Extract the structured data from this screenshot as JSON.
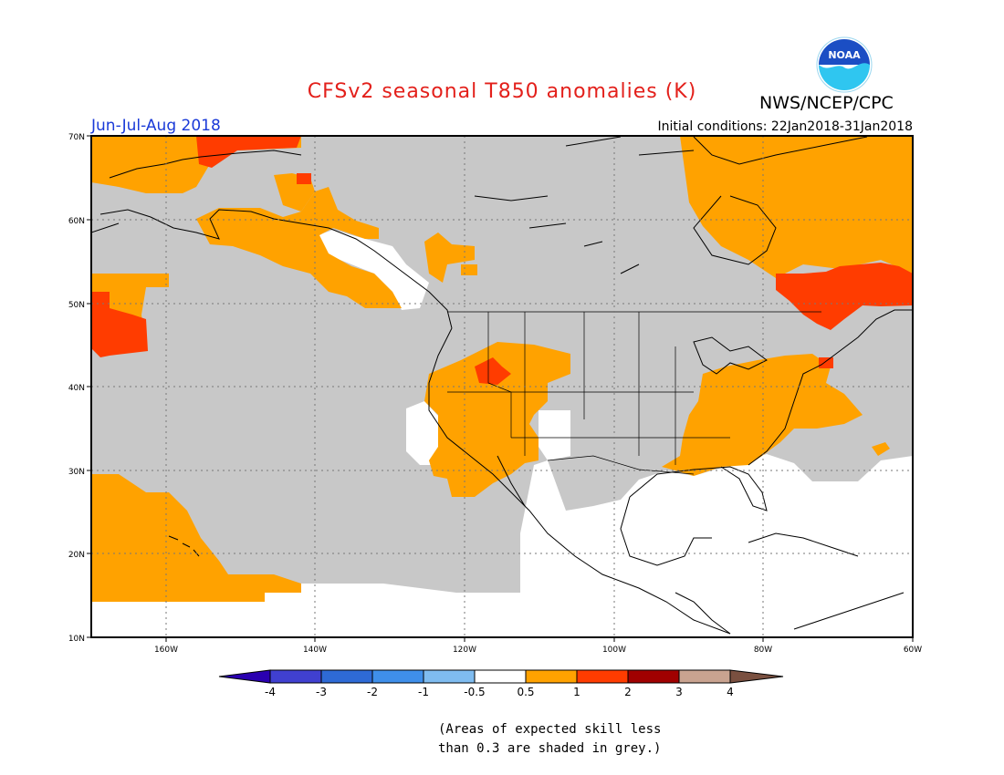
{
  "title": "CFSv2 seasonal T850 anomalies (K)",
  "agency": "NWS/NCEP/CPC",
  "logo_text": "NOAA",
  "period": "Jun-Jul-Aug 2018",
  "initial_conditions": "Initial conditions: 22Jan2018-31Jan2018",
  "map": {
    "lat_labels": [
      "70N",
      "60N",
      "50N",
      "40N",
      "30N",
      "20N",
      "10N"
    ],
    "lon_labels": [
      "160W",
      "140W",
      "120W",
      "100W",
      "80W",
      "60W"
    ],
    "extent": {
      "lon_min": -170,
      "lon_max": -60,
      "lat_min": 10,
      "lat_max": 70
    },
    "colors": {
      "grey_low_skill": "#c8c8c8",
      "anom_0_5_to_1": "#ffa200",
      "anom_1_to_2": "#ff3c00",
      "land_outline": "#000000"
    }
  },
  "colorbar": {
    "labels": [
      "-4",
      "-3",
      "-2",
      "-1",
      "-0.5",
      "0.5",
      "1",
      "2",
      "3",
      "4"
    ],
    "colors": [
      "#2a00b0",
      "#4040d0",
      "#2e6ad6",
      "#3f8fea",
      "#7fbcf0",
      "#ffffff",
      "#ffa200",
      "#ff3c00",
      "#a00000",
      "#c9a390",
      "#7a5040"
    ]
  },
  "note_lines": [
    "(Areas of expected skill less",
    "than 0.3 are shaded in grey.)"
  ]
}
